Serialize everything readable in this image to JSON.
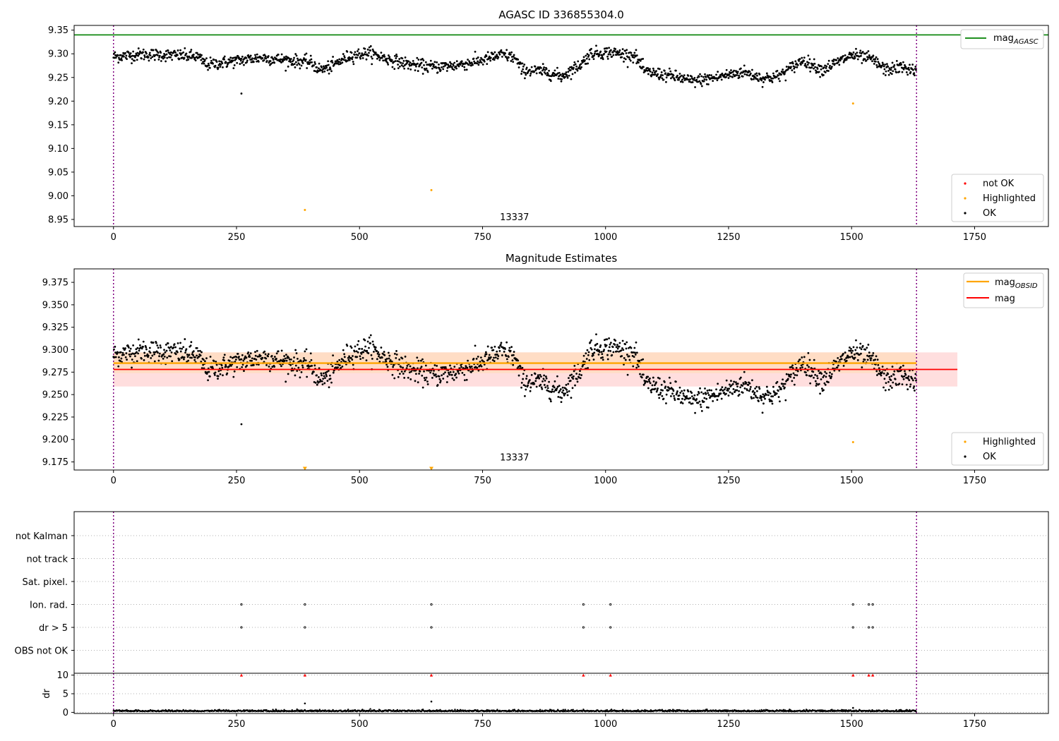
{
  "colors": {
    "ok": "#000000",
    "highlighted": "#ffa500",
    "not_ok": "#ff0000",
    "agasc_line": "#008000",
    "obsid_line": "#ffa500",
    "mag_line": "#ff0000",
    "obsid_band": "#ffdcb4",
    "mag_band": "#ffc8c8",
    "obs_boundary": "#800080"
  },
  "chart_data": [
    {
      "id": "top",
      "type": "scatter",
      "title": "AGASC ID 336855304.0",
      "xlim": [
        -80,
        1900
      ],
      "ylim": [
        8.935,
        9.36
      ],
      "xticks": [
        "0",
        "250",
        "500",
        "750",
        "1000",
        "1250",
        "1500",
        "1750"
      ],
      "xtick_values": [
        0,
        250,
        500,
        750,
        1000,
        1250,
        1500,
        1750
      ],
      "yticks": [
        "8.95",
        "9.00",
        "9.05",
        "9.10",
        "9.15",
        "9.20",
        "9.25",
        "9.30",
        "9.35"
      ],
      "ytick_values": [
        8.95,
        9.0,
        9.05,
        9.1,
        9.15,
        9.2,
        9.25,
        9.3,
        9.35
      ],
      "obs_boundaries": [
        0,
        1632
      ],
      "obsid_label": "13337",
      "obsid_label_pos": [
        815,
        8.95
      ],
      "agasc_mag": 9.34,
      "ok_count": 1632,
      "ok_outliers": [
        {
          "x": 260,
          "y": 9.216
        }
      ],
      "highlighted": [
        {
          "x": 389,
          "y": 8.97
        },
        {
          "x": 646,
          "y": 9.012
        },
        {
          "x": 1503,
          "y": 9.195
        }
      ],
      "legend_upper": {
        "label": "mag",
        "subscript": "AGASC"
      },
      "legend_lower": [
        "not OK",
        "Highlighted",
        "OK"
      ]
    },
    {
      "id": "middle",
      "type": "scatter",
      "title": "Magnitude Estimates",
      "xlim": [
        -80,
        1900
      ],
      "ylim": [
        9.166,
        9.39
      ],
      "xticks": [
        "0",
        "250",
        "500",
        "750",
        "1000",
        "1250",
        "1500",
        "1750"
      ],
      "xtick_values": [
        0,
        250,
        500,
        750,
        1000,
        1250,
        1500,
        1750
      ],
      "yticks": [
        "9.175",
        "9.200",
        "9.225",
        "9.250",
        "9.275",
        "9.300",
        "9.325",
        "9.350",
        "9.375"
      ],
      "ytick_values": [
        9.175,
        9.2,
        9.225,
        9.25,
        9.275,
        9.3,
        9.325,
        9.35,
        9.375
      ],
      "obs_boundaries": [
        0,
        1632
      ],
      "obsid_label": "13337",
      "obsid_label_pos": [
        815,
        9.175
      ],
      "mag_obsid": 9.285,
      "mag_obsid_band": [
        9.274,
        9.297
      ],
      "mag_obsid_x": [
        0,
        1632
      ],
      "mag": 9.278,
      "mag_band": [
        9.259,
        9.297
      ],
      "mag_x": [
        0,
        1715
      ],
      "ok_outliers": [
        {
          "x": 260,
          "y": 9.217
        }
      ],
      "highlighted": [
        {
          "x": 1503,
          "y": 9.197
        }
      ],
      "highlighted_offscale": [
        {
          "x": 389,
          "y": 9.168
        },
        {
          "x": 646,
          "y": 9.168
        }
      ],
      "legend_upper": [
        {
          "label": "mag",
          "subscript": "OBSID"
        },
        {
          "label": "mag",
          "subscript": ""
        }
      ],
      "legend_lower": [
        "Highlighted",
        "OK"
      ]
    },
    {
      "id": "flags",
      "type": "scatter",
      "xlim": [
        -80,
        1900
      ],
      "categories": [
        "not Kalman",
        "not track",
        "Sat. pixel.",
        "Ion. rad.",
        "dr > 5",
        "OBS not OK"
      ],
      "obs_boundaries": [
        0,
        1632
      ],
      "flag_events": {
        "Ion. rad.": [
          260,
          389,
          646,
          955,
          1010,
          1503,
          1535,
          1543
        ],
        "dr > 5": [
          260,
          389,
          646,
          955,
          1010,
          1503,
          1535,
          1543
        ]
      }
    },
    {
      "id": "dr",
      "type": "scatter",
      "xlim": [
        -80,
        1900
      ],
      "ylim": [
        -0.3,
        10.5
      ],
      "ylabel": "dr",
      "xticks": [
        "0",
        "250",
        "500",
        "750",
        "1000",
        "1250",
        "1500",
        "1750"
      ],
      "xtick_values": [
        0,
        250,
        500,
        750,
        1000,
        1250,
        1500,
        1750
      ],
      "yticks": [
        "0",
        "5",
        "10"
      ],
      "ytick_values": [
        0,
        5,
        10
      ],
      "obs_boundaries": [
        0,
        1632
      ],
      "clipped_markers": [
        260,
        389,
        646,
        955,
        1010,
        1503,
        1535,
        1543
      ],
      "spikes": [
        {
          "x": 389,
          "y": 2.4
        },
        {
          "x": 646,
          "y": 2.9
        },
        {
          "x": 1503,
          "y": 1.2
        }
      ],
      "ok_count": 1632
    }
  ]
}
